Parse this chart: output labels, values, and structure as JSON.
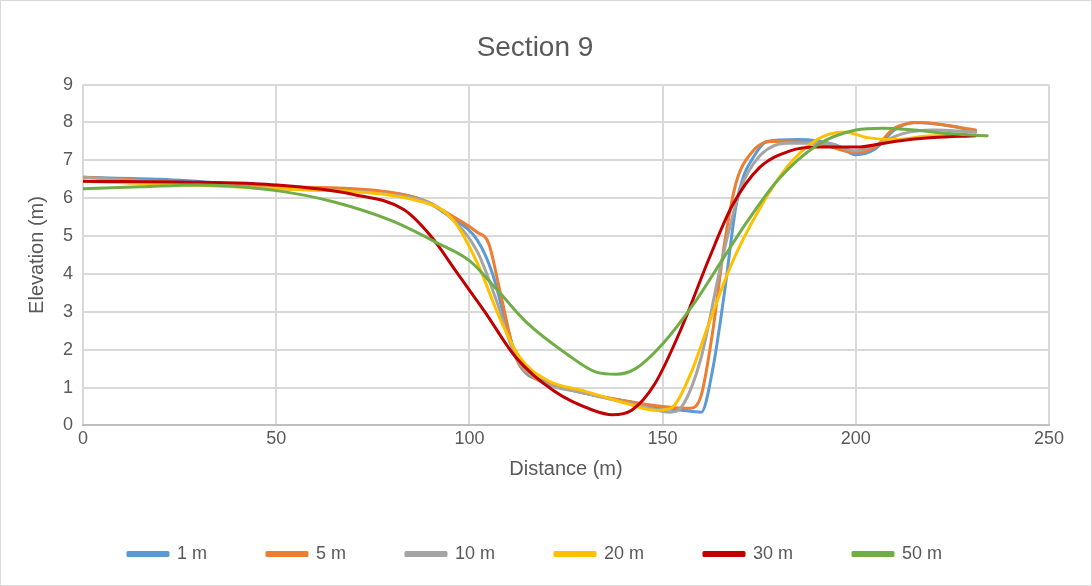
{
  "chart_data": {
    "type": "line",
    "title": "Section 9",
    "xlabel": "Distance (m)",
    "ylabel": "Elevation (m)",
    "xlim": [
      0,
      250
    ],
    "xticks": [
      0,
      50,
      100,
      150,
      200,
      250
    ],
    "ylim": [
      0,
      9
    ],
    "yticks": [
      0,
      1,
      2,
      3,
      4,
      5,
      6,
      7,
      8,
      9
    ],
    "grid": true,
    "legend": "bottom",
    "marker": "none",
    "line_style": "solid",
    "series": [
      {
        "name": "1 m",
        "color": "#5b9bd5",
        "x": [
          0,
          20,
          50,
          70,
          88,
          95,
          102,
          106,
          110,
          113,
          120,
          130,
          140,
          150,
          155,
          160,
          163,
          166,
          169,
          171,
          173,
          177,
          185,
          195,
          200,
          205,
          210,
          215,
          225,
          231
        ],
        "values": [
          6.55,
          6.5,
          6.3,
          6.2,
          5.95,
          5.5,
          4.9,
          4.0,
          2.5,
          1.6,
          1.15,
          0.85,
          0.65,
          0.45,
          0.4,
          0.35,
          1.5,
          3.5,
          5.8,
          6.6,
          7.0,
          7.5,
          7.55,
          7.4,
          7.15,
          7.3,
          7.8,
          8.0,
          7.9,
          7.75
        ]
      },
      {
        "name": "5 m",
        "color": "#ed7d31",
        "x": [
          0,
          50,
          70,
          88,
          96,
          102,
          105,
          108,
          112,
          116,
          122,
          130,
          140,
          150,
          157,
          160,
          163,
          166,
          169,
          173,
          178,
          190,
          200,
          205,
          210,
          217,
          225,
          231
        ],
        "values": [
          6.55,
          6.3,
          6.25,
          5.95,
          5.5,
          5.1,
          4.8,
          3.5,
          1.8,
          1.3,
          1.05,
          0.85,
          0.65,
          0.5,
          0.45,
          0.8,
          2.5,
          4.8,
          6.4,
          7.2,
          7.5,
          7.45,
          7.2,
          7.35,
          7.85,
          8.0,
          7.9,
          7.8
        ]
      },
      {
        "name": "10 m",
        "color": "#a5a5a5",
        "x": [
          0,
          50,
          88,
          95,
          102,
          107,
          112,
          118,
          130,
          145,
          152,
          155,
          160,
          165,
          170,
          175,
          182,
          192,
          200,
          205,
          212,
          220,
          231
        ],
        "values": [
          6.55,
          6.25,
          5.95,
          5.5,
          4.6,
          3.3,
          1.8,
          1.2,
          0.85,
          0.5,
          0.35,
          0.5,
          1.8,
          4.2,
          6.2,
          7.1,
          7.45,
          7.45,
          7.25,
          7.4,
          7.7,
          7.8,
          7.75
        ]
      },
      {
        "name": "20 m",
        "color": "#ffc000",
        "x": [
          0,
          50,
          88,
          96,
          102,
          108,
          113,
          120,
          130,
          140,
          148,
          152,
          157,
          162,
          168,
          175,
          182,
          190,
          197,
          203,
          210,
          220,
          231
        ],
        "values": [
          6.45,
          6.25,
          5.9,
          5.4,
          4.3,
          2.8,
          1.8,
          1.2,
          0.9,
          0.6,
          0.4,
          0.45,
          1.3,
          2.7,
          4.3,
          5.7,
          6.8,
          7.55,
          7.75,
          7.6,
          7.55,
          7.65,
          7.65
        ]
      },
      {
        "name": "30 m",
        "color": "#c00000",
        "x": [
          0,
          30,
          50,
          70,
          83,
          90,
          97,
          104,
          112,
          122,
          132,
          137,
          142,
          148,
          155,
          162,
          168,
          175,
          183,
          190,
          200,
          210,
          220,
          231
        ],
        "values": [
          6.45,
          6.42,
          6.35,
          6.1,
          5.7,
          5.0,
          4.0,
          3.0,
          1.8,
          0.9,
          0.4,
          0.28,
          0.4,
          1.1,
          2.6,
          4.4,
          5.8,
          6.8,
          7.25,
          7.35,
          7.35,
          7.5,
          7.6,
          7.65
        ]
      },
      {
        "name": "50 m",
        "color": "#70ad47",
        "x": [
          0,
          15,
          30,
          50,
          65,
          80,
          92,
          100,
          107,
          115,
          125,
          133,
          138,
          143,
          150,
          158,
          165,
          172,
          180,
          190,
          200,
          207,
          215,
          225,
          234
        ],
        "values": [
          6.25,
          6.3,
          6.35,
          6.2,
          5.9,
          5.4,
          4.8,
          4.35,
          3.6,
          2.7,
          1.9,
          1.4,
          1.35,
          1.5,
          2.15,
          3.2,
          4.3,
          5.4,
          6.5,
          7.4,
          7.8,
          7.85,
          7.8,
          7.7,
          7.65
        ]
      }
    ]
  }
}
